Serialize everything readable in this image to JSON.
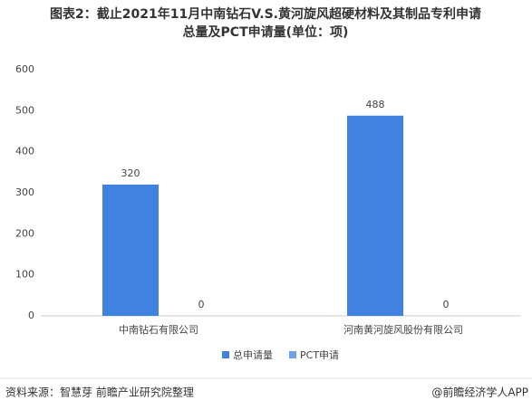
{
  "chart_data": {
    "type": "bar",
    "title": [
      "图表2：截止2021年11月中南钻石V.S.黄河旋风超硬材料及其制品专利申请",
      "总量及PCT申请量(单位：项)"
    ],
    "categories": [
      "中南钻石有限公司",
      "河南黄河旋风股份有限公司"
    ],
    "series": [
      {
        "name": "总申请量",
        "color": "#3f82e0",
        "values": [
          320,
          488
        ]
      },
      {
        "name": "PCT申请",
        "color": "#6fa3e8",
        "values": [
          0,
          0
        ]
      }
    ],
    "ylim": [
      0,
      600
    ],
    "yticks": [
      0,
      100,
      200,
      300,
      400,
      500,
      600
    ],
    "grid": false,
    "legend": "bottom",
    "source": "资料来源：智慧芽 前瞻产业研究院整理",
    "credit": "@前瞻经济学人APP"
  }
}
